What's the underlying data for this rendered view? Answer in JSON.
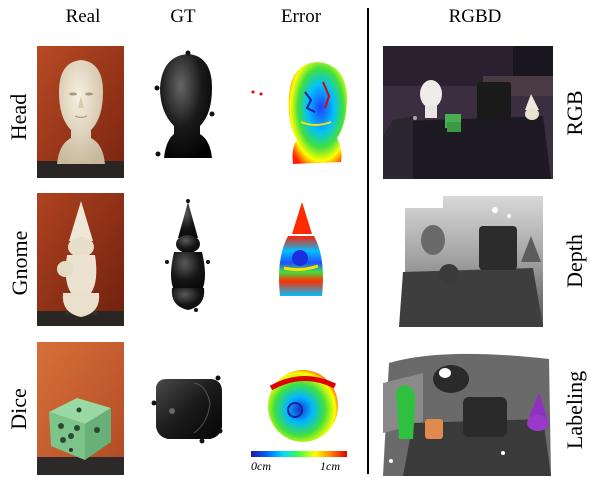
{
  "headers": {
    "real": "Real",
    "gt": "GT",
    "error": "Error",
    "rgbd": "RGBD"
  },
  "rows": [
    {
      "label": "Head"
    },
    {
      "label": "Gnome"
    },
    {
      "label": "Dice"
    }
  ],
  "right_labels": [
    "RGB",
    "Depth",
    "Labeling"
  ],
  "colorbar": {
    "min_label": "0cm",
    "max_label": "1cm"
  }
}
